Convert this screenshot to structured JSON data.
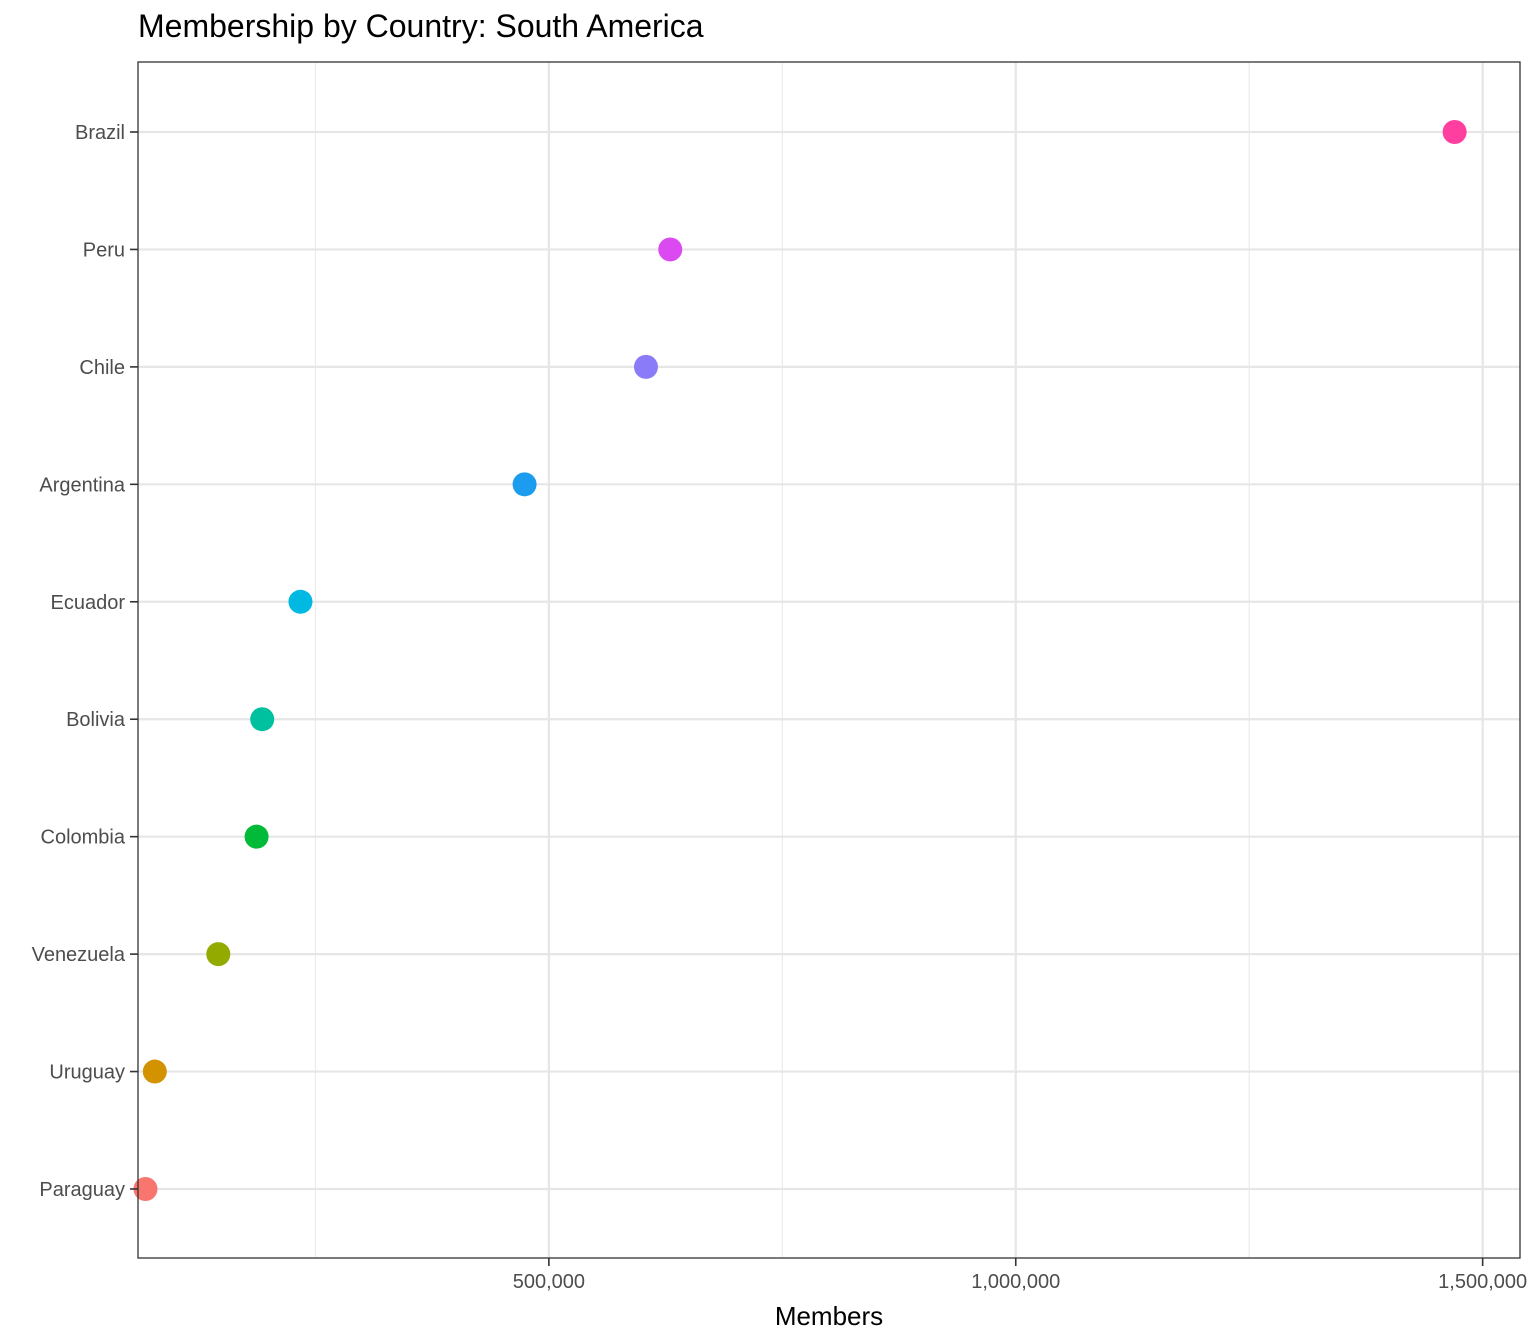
{
  "chart_data": {
    "type": "scatter",
    "title": "Membership by Country: South America",
    "xlabel": "Members",
    "ylabel": "",
    "xlim": [
      60000,
      1540000
    ],
    "x_ticks": [
      500000,
      1000000,
      1500000
    ],
    "x_tick_labels": [
      "500,000",
      "1,000,000",
      "1,500,000"
    ],
    "x_minor_ticks": [
      250000,
      750000,
      1250000
    ],
    "grid": true,
    "legend": "none",
    "categories": [
      "Paraguay",
      "Uruguay",
      "Venezuela",
      "Colombia",
      "Bolivia",
      "Ecuador",
      "Argentina",
      "Chile",
      "Peru",
      "Brazil"
    ],
    "values": [
      68000,
      78000,
      146000,
      187000,
      193000,
      234000,
      474000,
      604000,
      630000,
      1470000
    ],
    "colors": [
      "#F8766D",
      "#D39200",
      "#93AA00",
      "#00BA38",
      "#00C19F",
      "#00B9E3",
      "#1C9CEF",
      "#8A7CF8",
      "#DB4AF0",
      "#FF3FA0"
    ]
  }
}
